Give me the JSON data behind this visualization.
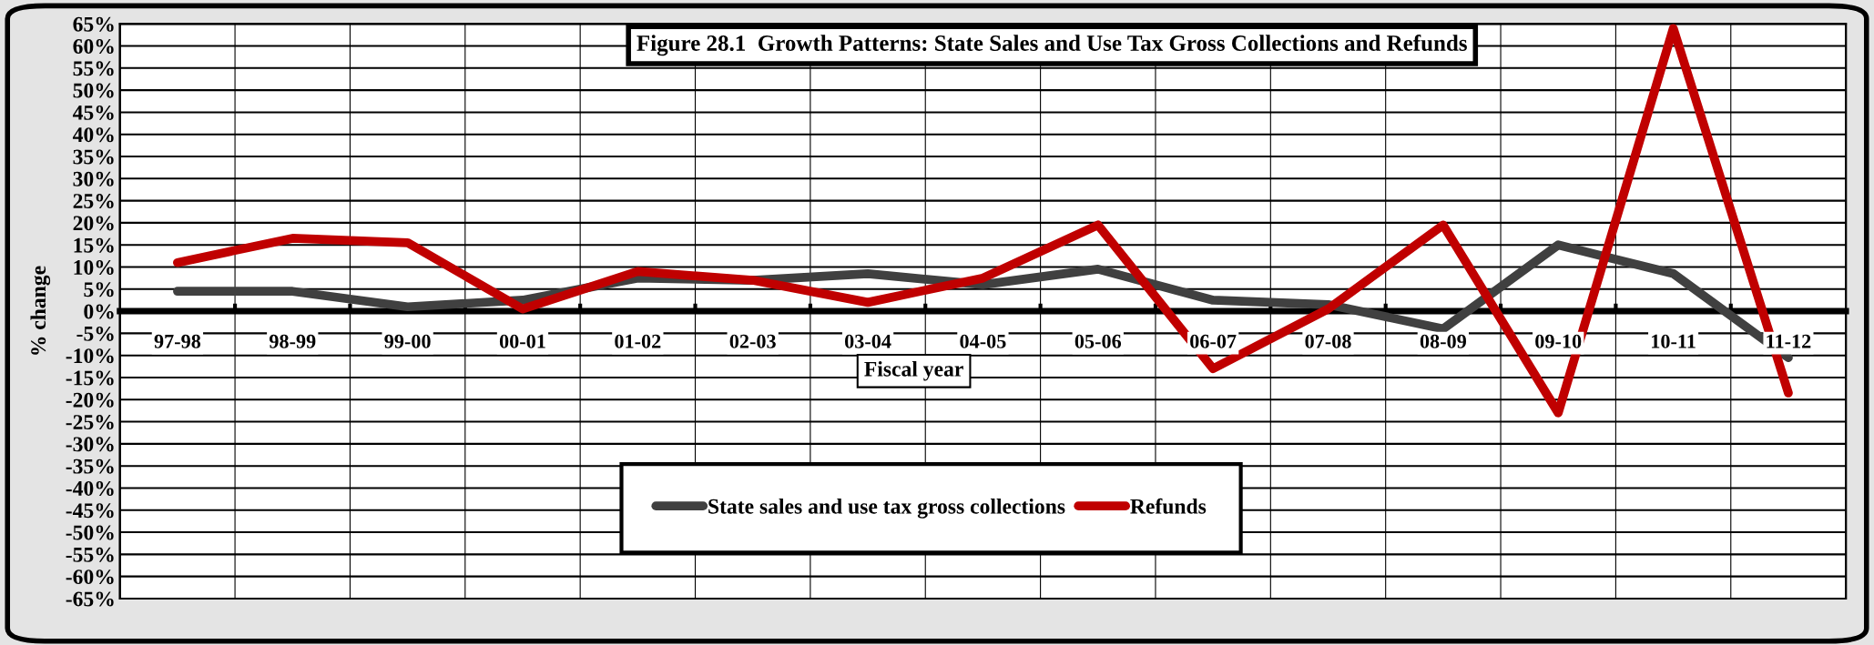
{
  "chart_data": {
    "type": "line",
    "title": "Figure 28.1  Growth Patterns: State Sales and Use Tax Gross Collections and Refunds",
    "xlabel": "Fiscal year",
    "ylabel": "% change",
    "categories": [
      "97-98",
      "98-99",
      "99-00",
      "00-01",
      "01-02",
      "02-03",
      "03-04",
      "04-05",
      "05-06",
      "06-07",
      "07-08",
      "08-09",
      "09-10",
      "10-11",
      "11-12"
    ],
    "series": [
      {
        "name": "State sales and use tax gross collections",
        "color": "#404040",
        "values": [
          4.5,
          4.5,
          1,
          2.5,
          7.5,
          7,
          8.5,
          6,
          9.5,
          2.5,
          1.5,
          -4,
          15,
          8.5,
          -10.5
        ]
      },
      {
        "name": "Refunds",
        "color": "#c00000",
        "values": [
          11,
          16.5,
          15.5,
          0.5,
          9,
          7,
          2,
          7.5,
          19.5,
          -13,
          0.5,
          19.5,
          -23,
          64,
          -18.5
        ]
      }
    ],
    "ylim": [
      -65,
      65
    ],
    "yticks": [
      {
        "value": 65,
        "label": "65%"
      },
      {
        "value": 60,
        "label": "60%"
      },
      {
        "value": 55,
        "label": "55%"
      },
      {
        "value": 50,
        "label": "50%"
      },
      {
        "value": 45,
        "label": "45%"
      },
      {
        "value": 40,
        "label": "40%"
      },
      {
        "value": 35,
        "label": "35%"
      },
      {
        "value": 30,
        "label": "30%"
      },
      {
        "value": 25,
        "label": "25%"
      },
      {
        "value": 20,
        "label": "20%"
      },
      {
        "value": 15,
        "label": "15%"
      },
      {
        "value": 10,
        "label": "10%"
      },
      {
        "value": 5,
        "label": "5%"
      },
      {
        "value": 0,
        "label": "0%"
      },
      {
        "value": -5,
        "label": "-5%"
      },
      {
        "value": -10,
        "label": "-10%"
      },
      {
        "value": -15,
        "label": "-15%"
      },
      {
        "value": -20,
        "label": "-20%"
      },
      {
        "value": -25,
        "label": "-25%"
      },
      {
        "value": -30,
        "label": "-30%"
      },
      {
        "value": -35,
        "label": "-35%"
      },
      {
        "value": -40,
        "label": "-40%"
      },
      {
        "value": -45,
        "label": "-45%"
      },
      {
        "value": -50,
        "label": "-50%"
      },
      {
        "value": -55,
        "label": "-55%"
      },
      {
        "value": -60,
        "label": "-60%"
      },
      {
        "value": -65,
        "label": "-65%"
      }
    ],
    "grid": true,
    "legend": "bottom",
    "marker": "none",
    "line_style": "solid"
  }
}
